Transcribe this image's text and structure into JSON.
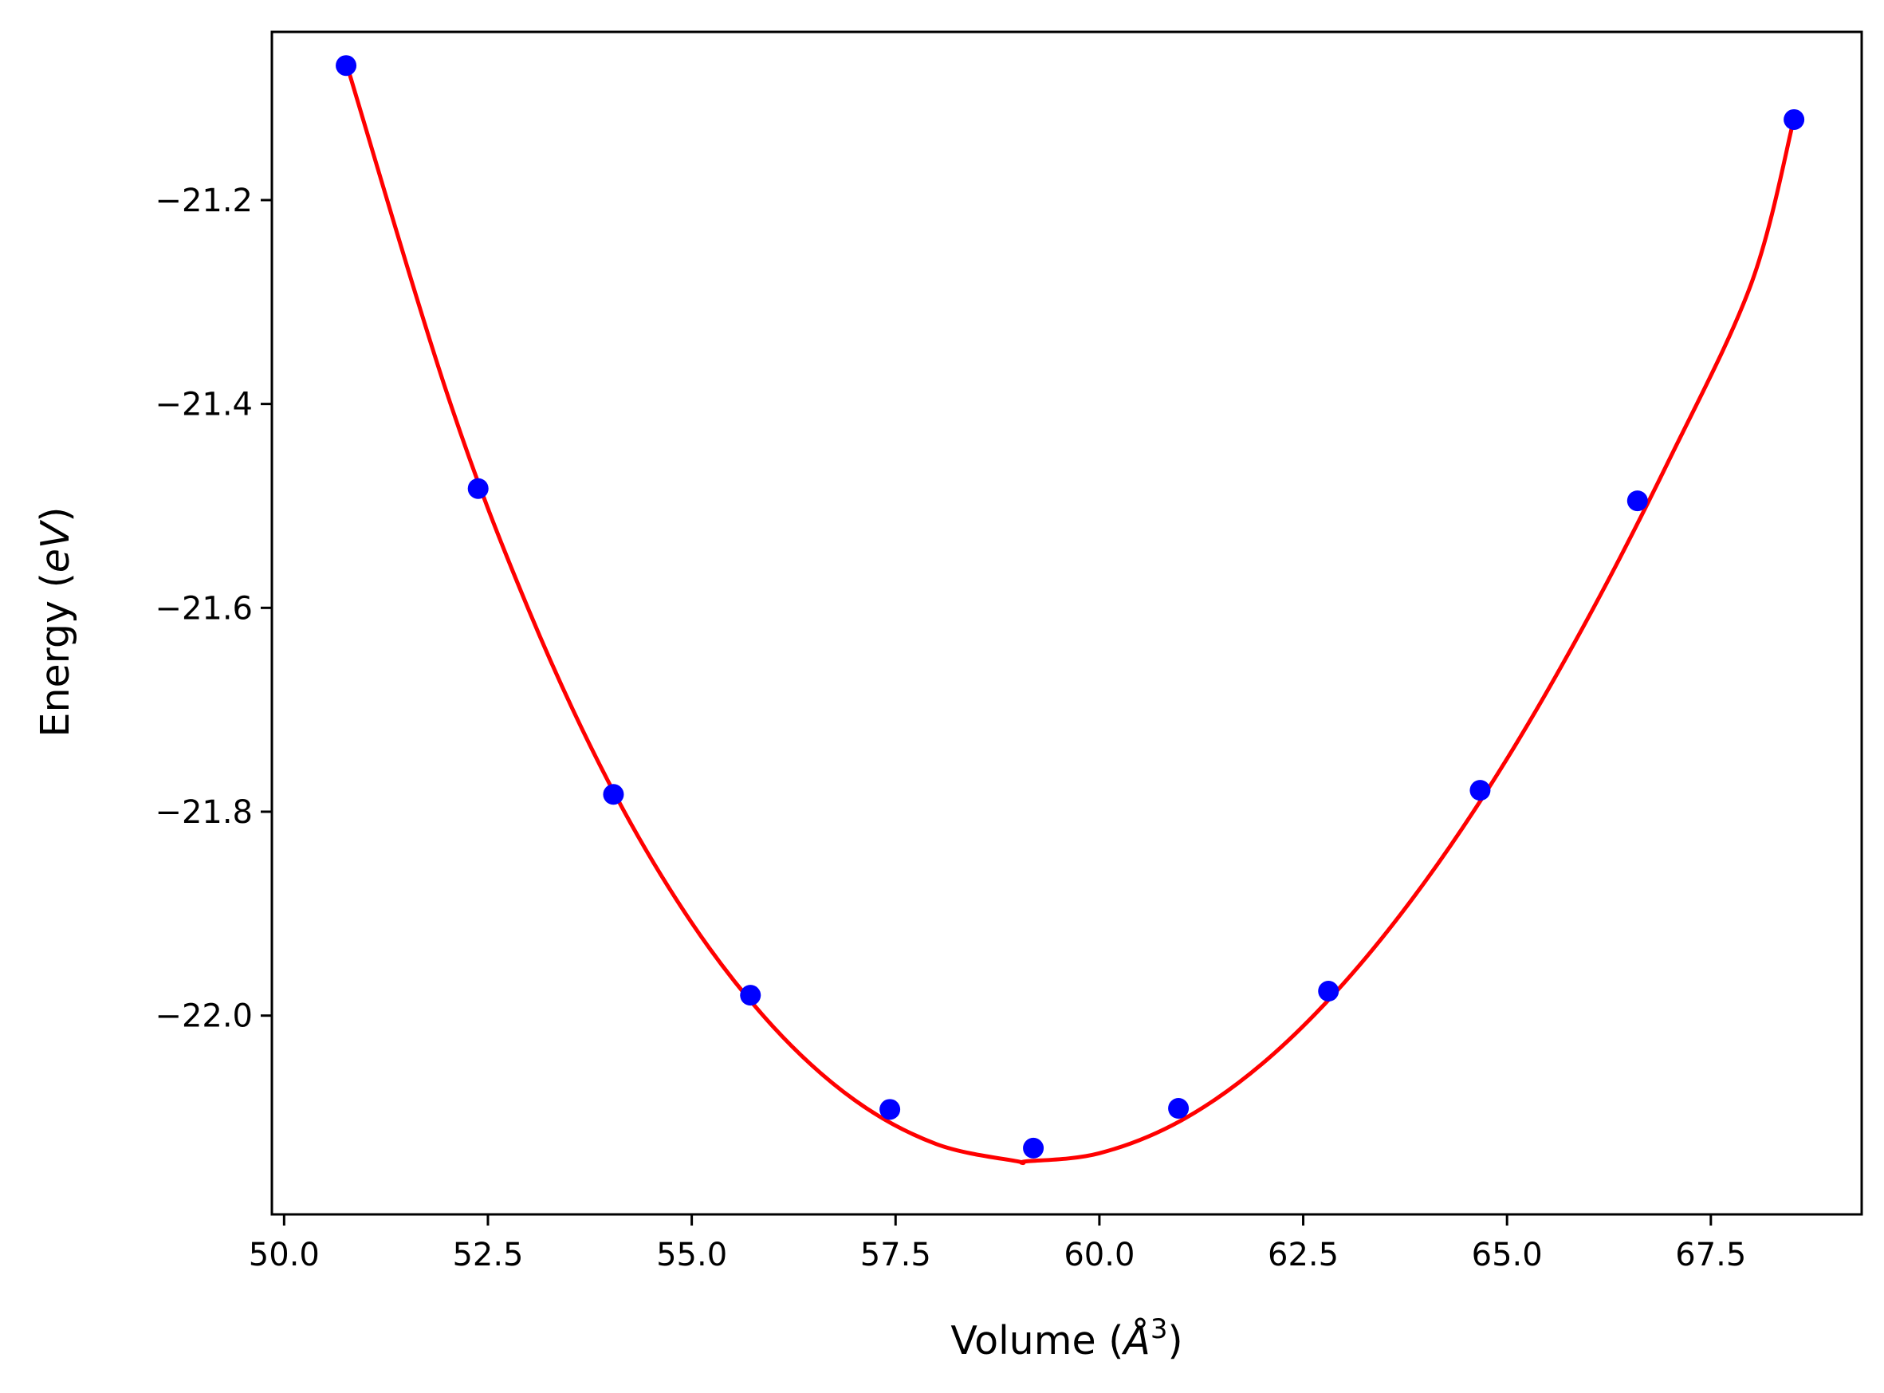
{
  "chart_data": {
    "type": "scatter",
    "title": "",
    "xlabel": {
      "prefix": "Volume (",
      "symbol": "Å",
      "sup": "3",
      "suffix": ")"
    },
    "ylabel": {
      "prefix": "Energy (",
      "symbol": "eV",
      "suffix": ")"
    },
    "xlim": [
      49.85,
      69.35
    ],
    "ylim": [
      -22.195,
      -21.035
    ],
    "x_ticks": [
      50.0,
      52.5,
      55.0,
      57.5,
      60.0,
      62.5,
      65.0,
      67.5
    ],
    "x_tick_labels": [
      "50.0",
      "52.5",
      "55.0",
      "57.5",
      "60.0",
      "62.5",
      "65.0",
      "67.5"
    ],
    "y_ticks": [
      -21.2,
      -21.4,
      -21.6,
      -21.8,
      -22.0
    ],
    "y_tick_labels": [
      "−21.2",
      "−21.4",
      "−21.6",
      "−21.8",
      "−22.0"
    ],
    "grid": false,
    "colors": {
      "points": "#0000ff",
      "fit": "#ff0000",
      "axes": "#000000"
    },
    "series": [
      {
        "kind": "points",
        "x": [
          50.76,
          52.38,
          54.04,
          55.72,
          57.43,
          59.19,
          60.97,
          62.81,
          64.67,
          66.6,
          68.52
        ],
        "y": [
          -21.068,
          -21.483,
          -21.783,
          -21.98,
          -22.092,
          -22.13,
          -22.091,
          -21.976,
          -21.779,
          -21.495,
          -21.121
        ]
      },
      {
        "kind": "fit-curve",
        "x": [
          50.76,
          52.0,
          53.0,
          54.0,
          55.0,
          56.0,
          57.0,
          58.0,
          59.0,
          59.1,
          60.0,
          61.0,
          62.0,
          63.0,
          64.0,
          65.0,
          66.0,
          67.0,
          68.0,
          68.52
        ],
        "y": [
          -21.065,
          -21.39,
          -21.602,
          -21.774,
          -21.909,
          -22.011,
          -22.083,
          -22.126,
          -22.143,
          -22.143,
          -22.135,
          -22.103,
          -22.047,
          -21.968,
          -21.868,
          -21.748,
          -21.609,
          -21.453,
          -21.281,
          -21.12
        ]
      }
    ]
  }
}
